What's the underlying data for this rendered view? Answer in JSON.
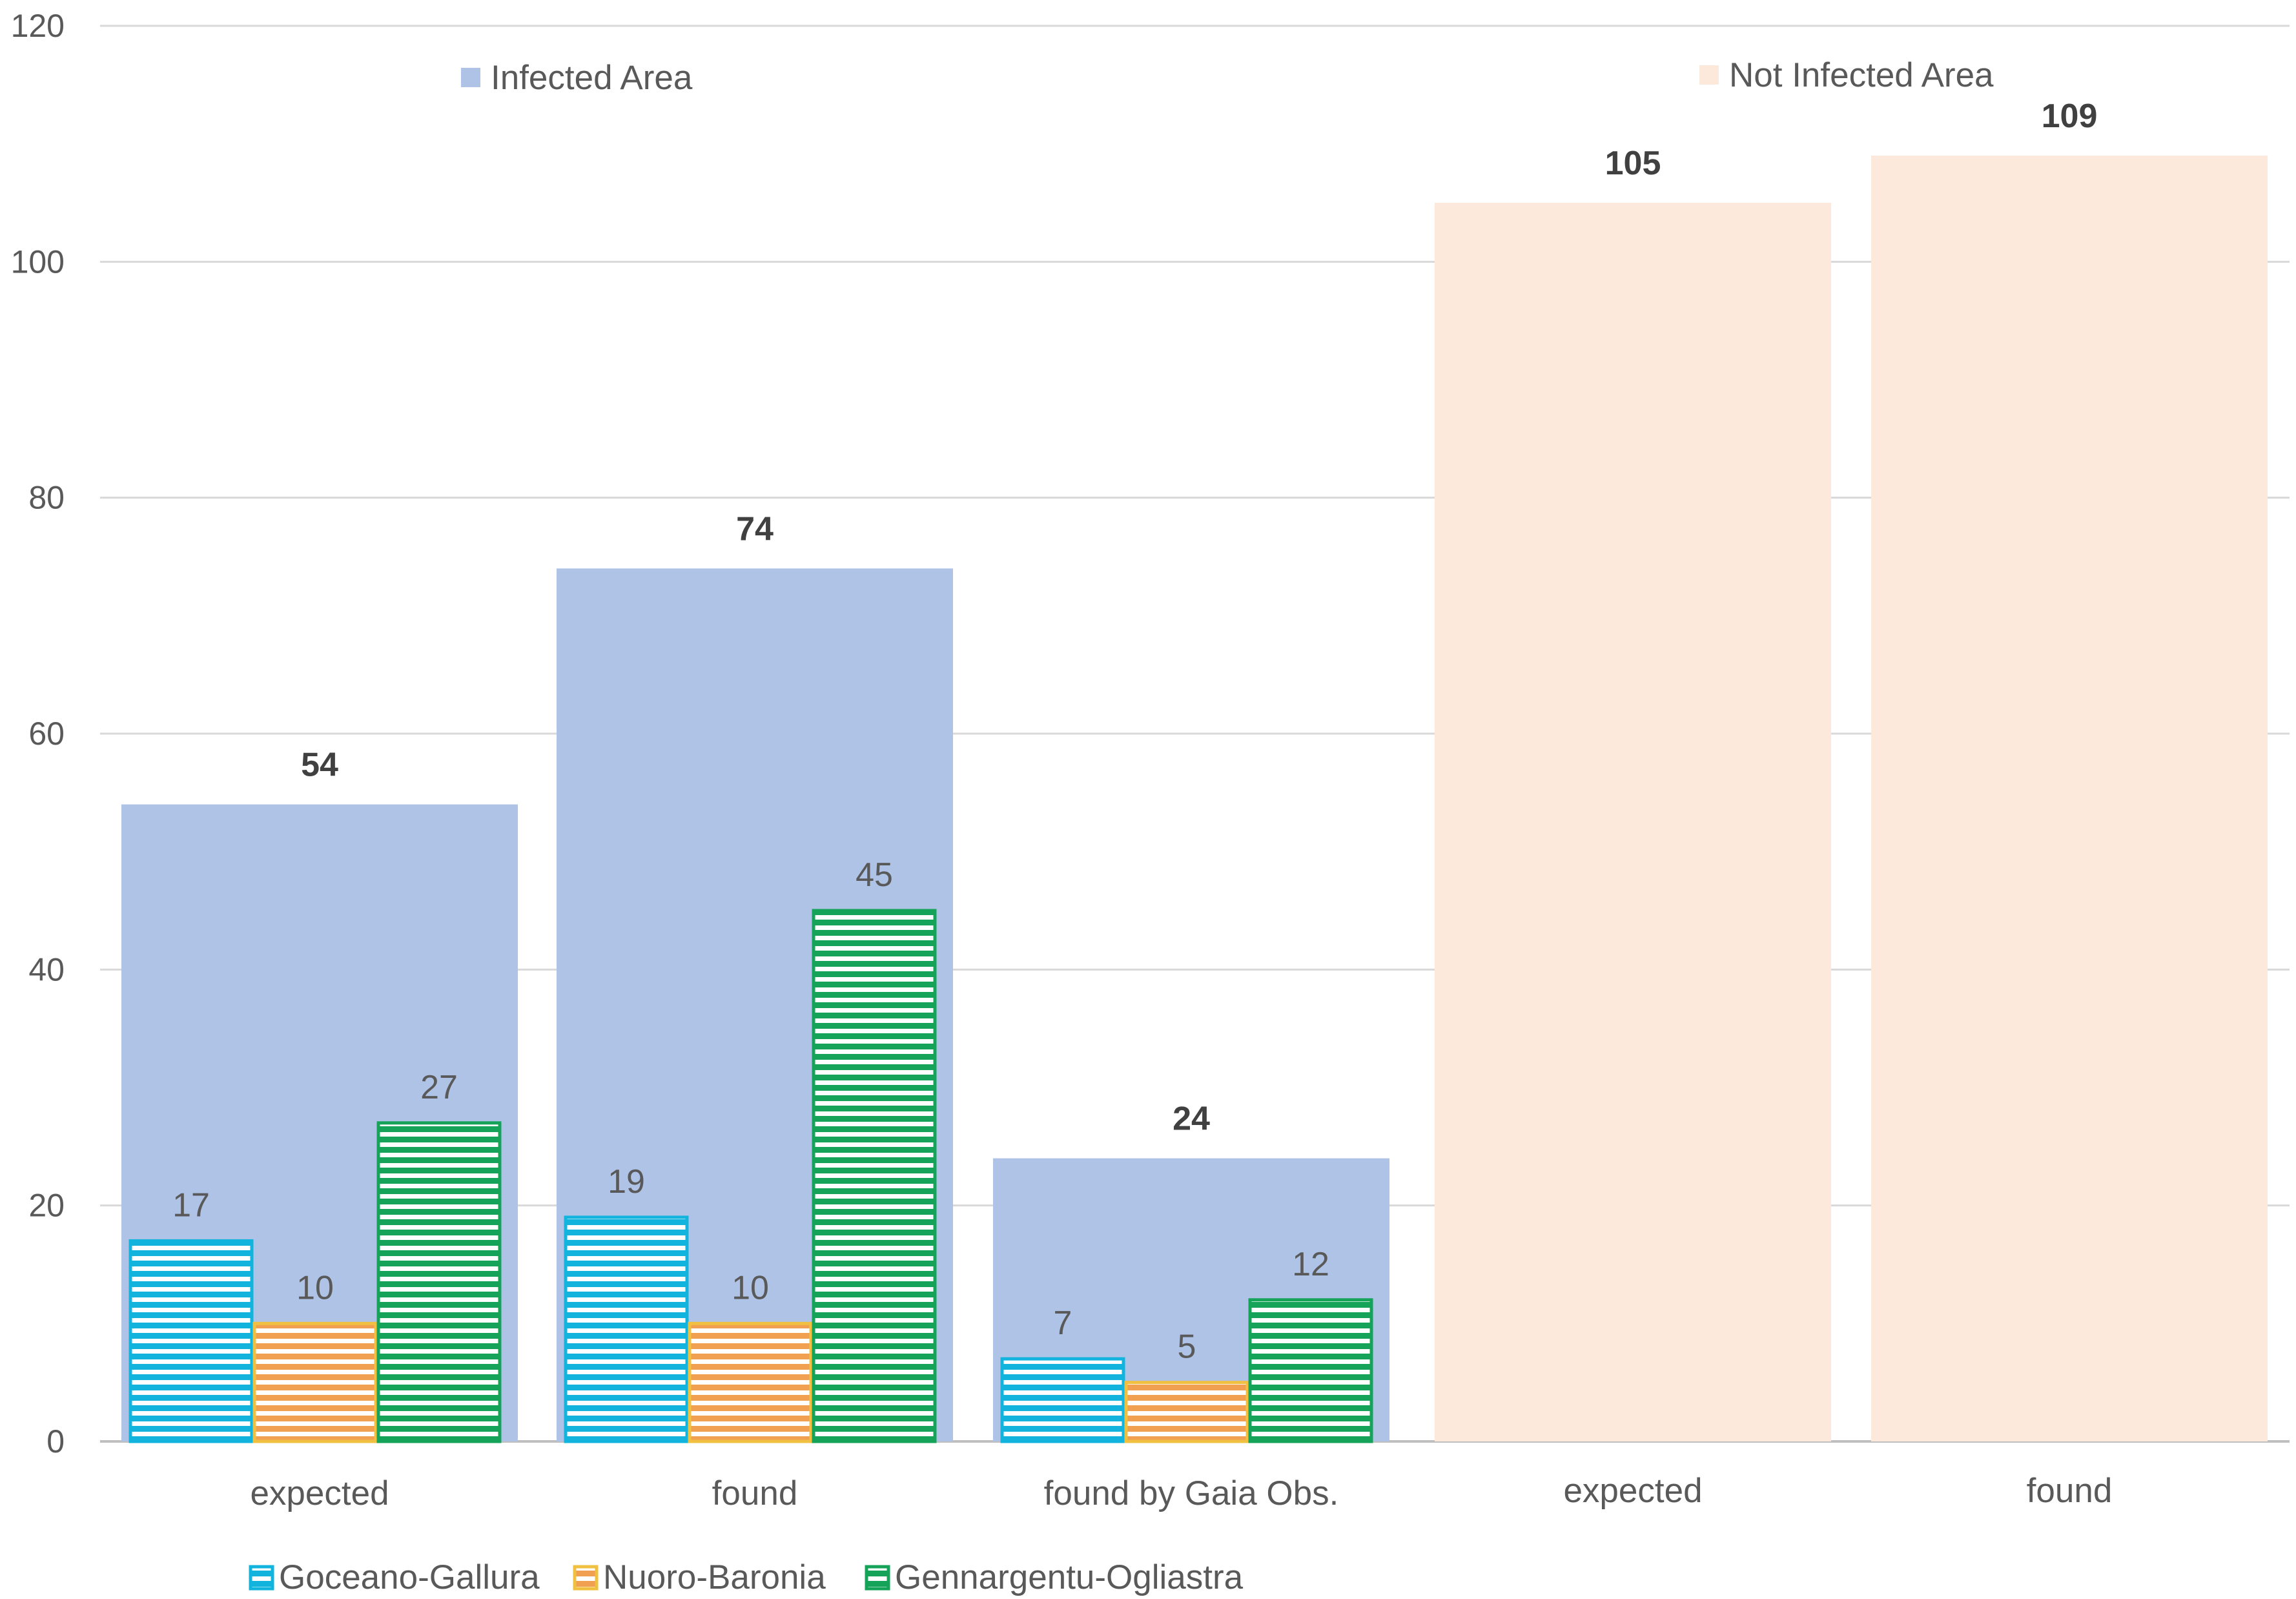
{
  "chart_data": {
    "type": "bar",
    "title": "",
    "xlabel": "",
    "ylabel": "",
    "ylim": [
      0,
      120
    ],
    "yticks": [
      0,
      20,
      40,
      60,
      80,
      100,
      120
    ],
    "grid": true,
    "tick_labels": [
      "0",
      "20",
      "40",
      "60",
      "80",
      "100",
      "120"
    ],
    "groups": [
      {
        "name": "Infected Area",
        "color": "#aec3e6",
        "categories": [
          "expected",
          "found",
          "found by Gaia Obs."
        ],
        "totals": [
          54,
          74,
          24
        ],
        "total_labels": [
          "54",
          "74",
          "24"
        ]
      },
      {
        "name": "Not Infected Area",
        "color": "#fde9dc",
        "categories": [
          "expected",
          "found"
        ],
        "totals": [
          105,
          109
        ],
        "total_labels": [
          "105",
          "109"
        ]
      }
    ],
    "series": [
      {
        "name": "Goceano-Gallura",
        "color": "#12b4dd",
        "values": [
          17,
          19,
          7
        ],
        "labels": [
          "17",
          "19",
          "7"
        ]
      },
      {
        "name": "Nuoro-Baronia",
        "color": "#f0a050",
        "values": [
          10,
          10,
          5
        ],
        "labels": [
          "10",
          "10",
          "5"
        ]
      },
      {
        "name": "Gennargentu-Ogliastra",
        "color": "#15a35a",
        "values": [
          27,
          45,
          12
        ],
        "labels": [
          "27",
          "45",
          "12"
        ]
      }
    ],
    "legend": {
      "groups_position": "top",
      "series_position": "bottom-left"
    }
  }
}
